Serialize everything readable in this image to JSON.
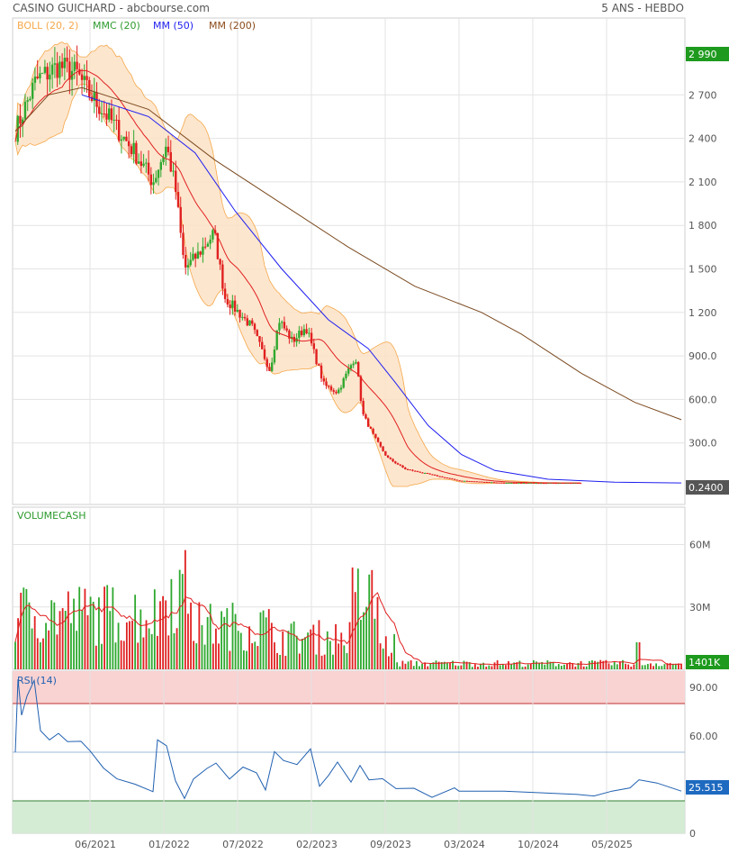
{
  "header": {
    "title": "CASINO GUICHARD - abcbourse.com",
    "period": "5 ANS - HEBDO"
  },
  "legend": [
    {
      "label": "BOLL (20, 2)",
      "color": "#f5a84a"
    },
    {
      "label": "MMC (20)",
      "color": "#2e9b2e"
    },
    {
      "label": "MM (50)",
      "color": "#1e1ef0"
    },
    {
      "label": "MM (200)",
      "color": "#8b4a1a"
    }
  ],
  "colors": {
    "up": "#2ea82e",
    "down": "#e02020",
    "boll_fill": "#fde2c6",
    "boll_line": "#f5a84a",
    "mmc20": "#e02020",
    "mm50": "#1e1ef0",
    "mm200": "#7b4a20",
    "rsi_line": "#2060b0",
    "rsi_over": "#f9d2d2",
    "rsi_under": "#d4ebd4",
    "badge_green": "#1e9a1e",
    "badge_gray": "#555555"
  },
  "price_badges": {
    "last": "2 990",
    "current": "0.2400"
  },
  "volume_badge": "1401K",
  "rsi_badge": "25.515",
  "x_labels": [
    "06/2021",
    "01/2022",
    "07/2022",
    "02/2023",
    "09/2023",
    "03/2024",
    "10/2024",
    "05/2025"
  ],
  "chart_data": [
    {
      "type": "candlestick",
      "title": "CASINO GUICHARD",
      "y_ticks": [
        "2 700",
        "2 400",
        "2 100",
        "1 800",
        "1 500",
        "1 200",
        "900.0",
        "600.0",
        "300.0"
      ],
      "ylim": [
        0,
        3100
      ],
      "ma200_path": [
        [
          0,
          2450
        ],
        [
          0.05,
          2700
        ],
        [
          0.1,
          2750
        ],
        [
          0.2,
          2600
        ],
        [
          0.3,
          2250
        ],
        [
          0.4,
          1950
        ],
        [
          0.5,
          1650
        ],
        [
          0.6,
          1380
        ],
        [
          0.7,
          1200
        ],
        [
          0.76,
          1050
        ],
        [
          0.85,
          780
        ],
        [
          0.93,
          580
        ],
        [
          1.0,
          460
        ]
      ],
      "ma50_path": [
        [
          0.1,
          2700
        ],
        [
          0.2,
          2550
        ],
        [
          0.27,
          2300
        ],
        [
          0.33,
          1900
        ],
        [
          0.4,
          1500
        ],
        [
          0.47,
          1150
        ],
        [
          0.53,
          950
        ],
        [
          0.57,
          720
        ],
        [
          0.62,
          420
        ],
        [
          0.67,
          220
        ],
        [
          0.72,
          110
        ],
        [
          0.8,
          50
        ],
        [
          0.9,
          30
        ],
        [
          1.0,
          24
        ]
      ]
    },
    {
      "type": "bar",
      "title": "VOLUMECASH",
      "y_ticks": [
        "60M",
        "30M"
      ],
      "ylim": [
        0,
        78
      ]
    },
    {
      "type": "line",
      "title": "RSI (14)",
      "y_ticks": [
        "90.00",
        "60.00",
        "0"
      ],
      "ylim": [
        0,
        100
      ],
      "levels": [
        80,
        50,
        20
      ]
    }
  ]
}
